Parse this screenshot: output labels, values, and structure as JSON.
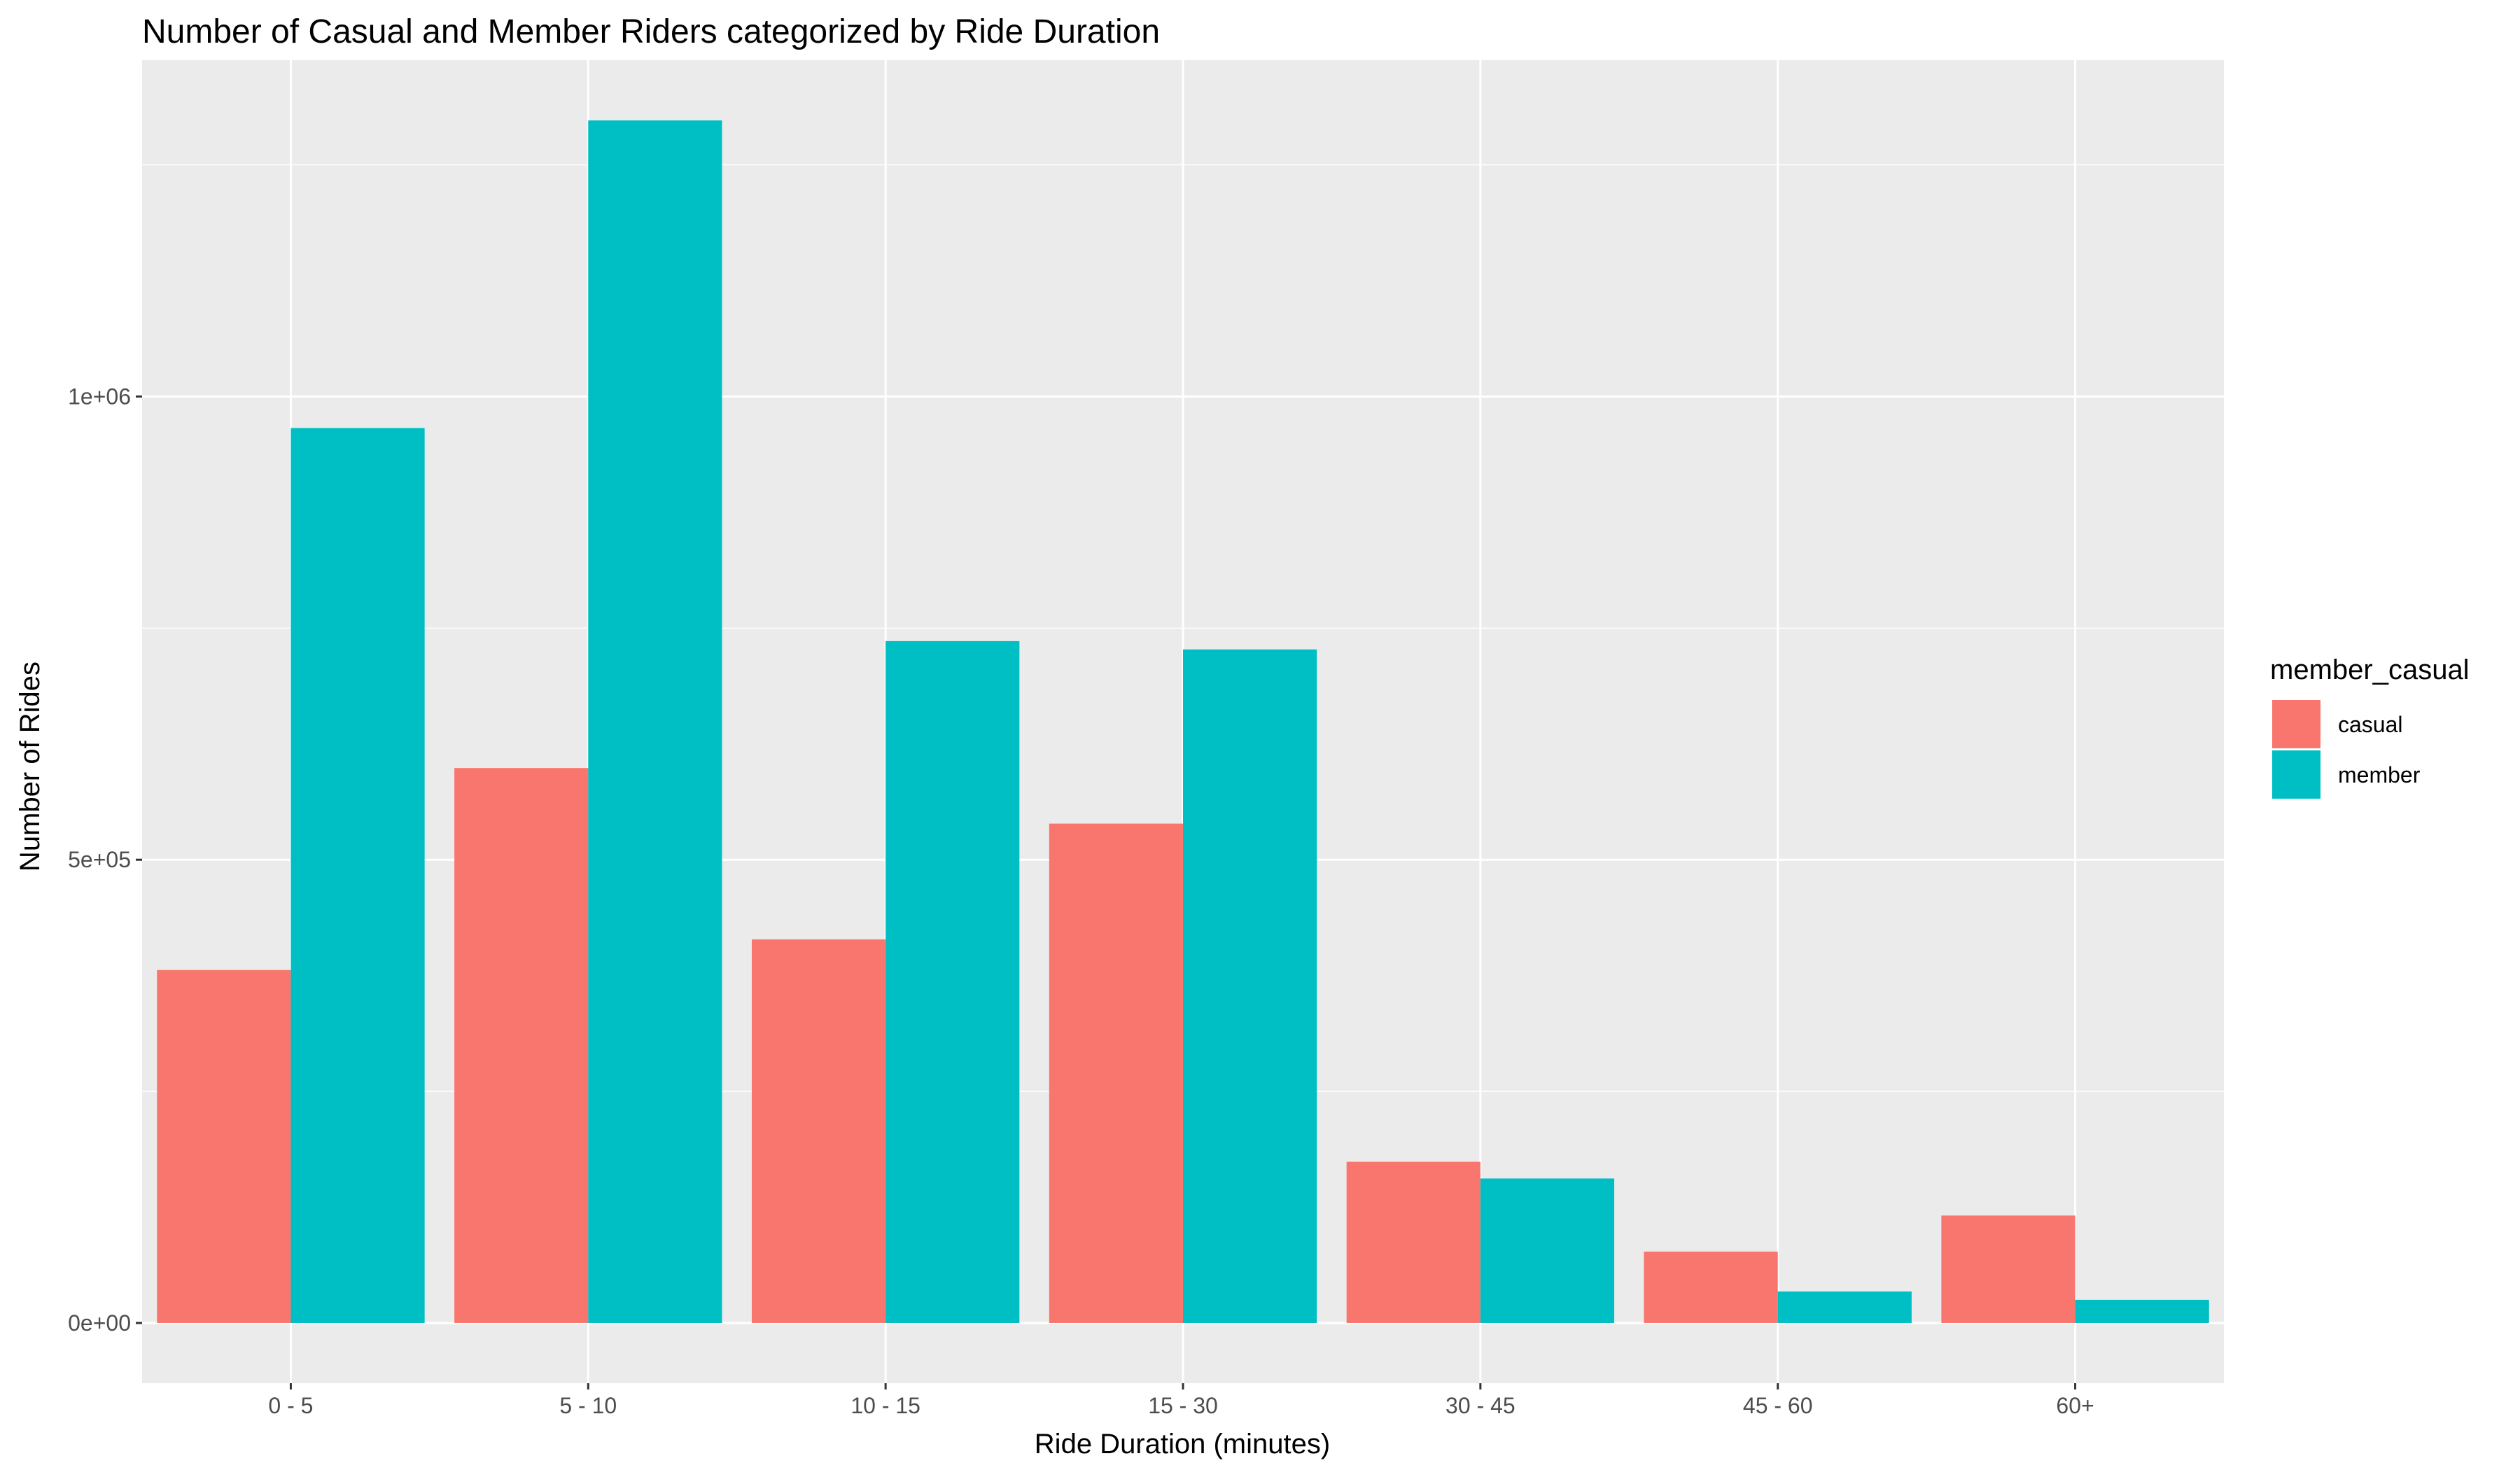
{
  "chart_data": {
    "type": "bar",
    "title": "Number of Casual and Member Riders categorized by Ride Duration",
    "xlabel": "Ride Duration (minutes)",
    "ylabel": "Number of Rides",
    "categories": [
      "0 - 5",
      "5 - 10",
      "10 - 15",
      "15 - 30",
      "30 - 45",
      "45 - 60",
      "60+"
    ],
    "series": [
      {
        "name": "casual",
        "color": "#F8766D",
        "values": [
          381000,
          599000,
          414000,
          539000,
          174000,
          77000,
          116000
        ]
      },
      {
        "name": "member",
        "color": "#00BFC4",
        "values": [
          966000,
          1298000,
          736000,
          727000,
          156000,
          34000,
          25000
        ]
      }
    ],
    "ylim": [
      -65000,
      1363000
    ],
    "yticks": [
      0,
      500000,
      1000000
    ],
    "ytick_labels": [
      "0e+00",
      "5e+05",
      "1e+06"
    ],
    "grid": true,
    "legend_title": "member_casual",
    "legend_position": "right"
  }
}
